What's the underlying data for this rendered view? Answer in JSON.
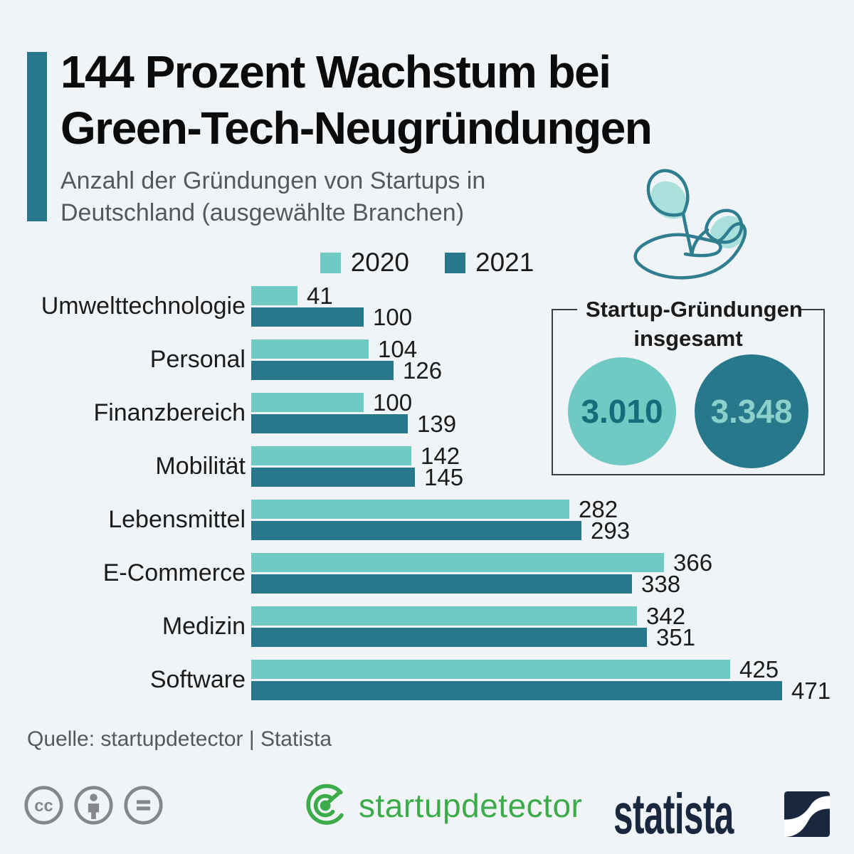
{
  "colors": {
    "background": "#F0F4F7",
    "teal_light": "#70C9C2",
    "teal_dark": "#27788A",
    "leaf_fill": "#A9E0DB",
    "plant_stroke": "#2F7E90",
    "title_color": "#0B0B0B",
    "subtitle_gray": "#57585A",
    "text_dark": "#1B1B1B",
    "box_border": "#3E3F40",
    "circle_text_dark": "#176C7B",
    "circle_text_light": "#8BD0CB",
    "gray_icon": "#85878A",
    "green": "#3BAC49",
    "navy": "#19283E"
  },
  "header": {
    "title_line1": "144 Prozent Wachstum bei",
    "title_line2": "Green-Tech-Neugründungen",
    "subtitle_line1": "Anzahl der Gründungen von Startups in",
    "subtitle_line2": "Deutschland (ausgewählte Branchen)"
  },
  "legend": [
    {
      "label": "2020",
      "color": "#70C9C2"
    },
    {
      "label": "2021",
      "color": "#27788A"
    }
  ],
  "chart_data": {
    "type": "bar",
    "orientation": "horizontal",
    "title": "Anzahl der Gründungen von Startups in Deutschland (ausgewählte Branchen)",
    "categories": [
      "Umwelttechnologie",
      "Personal",
      "Finanzbereich",
      "Mobilität",
      "Lebensmittel",
      "E-Commerce",
      "Medizin",
      "Software"
    ],
    "series": [
      {
        "name": "2020",
        "color": "#70C9C2",
        "values": [
          41,
          104,
          100,
          142,
          282,
          366,
          342,
          425
        ]
      },
      {
        "name": "2021",
        "color": "#27788A",
        "values": [
          100,
          126,
          139,
          145,
          293,
          338,
          351,
          471
        ]
      }
    ],
    "value_labels": true,
    "xlim": [
      0,
      471
    ],
    "grid": false,
    "legend_position": "top-center"
  },
  "totals_box": {
    "title_line1": "Startup-Gründungen",
    "title_line2": "insgesamt",
    "circles": [
      {
        "value": "3.010",
        "bg": "#70C9C2",
        "text_color": "#176C7B"
      },
      {
        "value": "3.348",
        "bg": "#27788A",
        "text_color": "#8BD0CB"
      }
    ]
  },
  "icons": {
    "plant": "hand-holding-seedling-icon",
    "license": [
      "cc-icon",
      "attribution-person-icon",
      "equals-icon"
    ]
  },
  "source": {
    "text": "Quelle: startupdetector  |  Statista"
  },
  "footer": {
    "startupdetector_label": "startupdetector",
    "statista_label": "statista"
  }
}
